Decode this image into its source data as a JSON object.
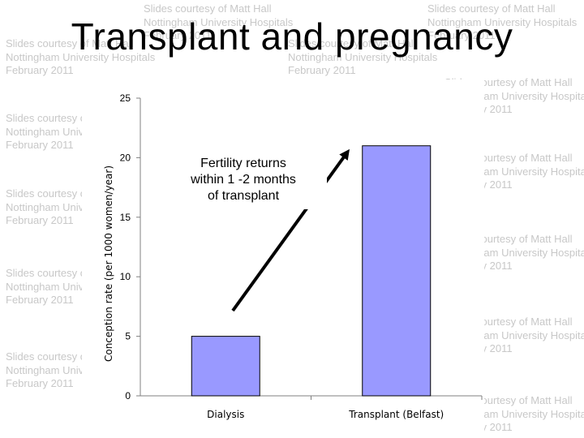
{
  "slide": {
    "title": "Transplant and pregnancy"
  },
  "watermark": {
    "line1": "Slides courtesy of Matt Hall",
    "line2": "Nottingham University Hospitals",
    "line3": "February 2011"
  },
  "annotation": {
    "lines": [
      "Fertility returns",
      "within 1 -2 months",
      "of transplant"
    ]
  },
  "colors": {
    "bar_fill": "#9999ff",
    "bar_stroke": "#000000",
    "arrow": "#000000"
  },
  "chart_data": {
    "type": "bar",
    "categories": [
      "Dialysis",
      "Transplant (Belfast)"
    ],
    "values": [
      5,
      21
    ],
    "ylabel": "Conception rate (per 1000 women/year)",
    "xlabel": "",
    "ylim": [
      0,
      25
    ],
    "yticks": [
      0,
      5,
      10,
      15,
      20,
      25
    ],
    "grid": false,
    "legend": "none"
  }
}
